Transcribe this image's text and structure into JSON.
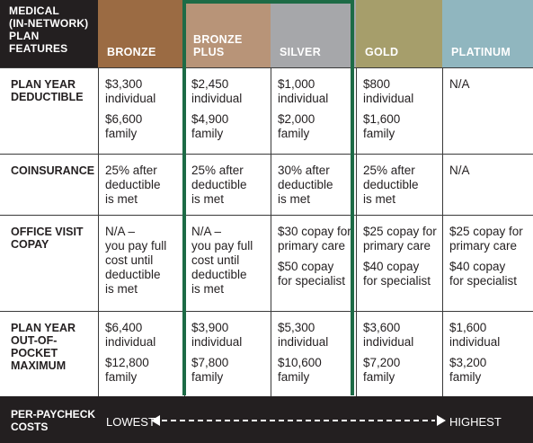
{
  "header": {
    "features_label": "MEDICAL\n(IN-NETWORK)\nPLAN FEATURES",
    "plans": [
      {
        "name": "BRONZE",
        "color": "#9b6b43"
      },
      {
        "name": "BRONZE PLUS",
        "color": "#b89478"
      },
      {
        "name": "SILVER",
        "color": "#a6a7aa"
      },
      {
        "name": "GOLD",
        "color": "#a69e6b"
      },
      {
        "name": "PLATINUM",
        "color": "#90b6bf"
      }
    ]
  },
  "rows": [
    {
      "label": "PLAN YEAR\nDEDUCTIBLE",
      "cells": [
        [
          "$3,300\nindividual",
          "$6,600\nfamily"
        ],
        [
          "$2,450\nindividual",
          "$4,900\nfamily"
        ],
        [
          "$1,000\nindividual",
          "$2,000\nfamily"
        ],
        [
          "$800\nindividual",
          "$1,600\nfamily"
        ],
        [
          "N/A"
        ]
      ]
    },
    {
      "label": "COINSURANCE",
      "cells": [
        [
          "25% after\ndeductible\nis met"
        ],
        [
          "25% after\ndeductible\nis met"
        ],
        [
          "30% after\ndeductible\nis met"
        ],
        [
          "25% after\ndeductible\nis met"
        ],
        [
          "N/A"
        ]
      ]
    },
    {
      "label": "OFFICE VISIT\nCOPAY",
      "cells": [
        [
          "N/A –\nyou pay full\ncost until\ndeductible\nis met"
        ],
        [
          "N/A –\nyou pay full\ncost until\ndeductible\nis met"
        ],
        [
          "$30 copay for\nprimary care",
          "$50 copay\nfor specialist"
        ],
        [
          "$25 copay for\nprimary care",
          "$40 copay\nfor specialist"
        ],
        [
          "$25 copay for\nprimary care",
          "$40 copay\nfor specialist"
        ]
      ]
    },
    {
      "label": "PLAN YEAR\nOUT-OF-POCKET\nMAXIMUM",
      "cells": [
        [
          "$6,400\nindividual",
          "$12,800\nfamily"
        ],
        [
          "$3,900\nindividual",
          "$7,800\nfamily"
        ],
        [
          "$5,300\nindividual",
          "$10,600\nfamily"
        ],
        [
          "$3,600\nindividual",
          "$7,200\nfamily"
        ],
        [
          "$1,600\nindividual",
          "$3,200\nfamily"
        ]
      ]
    }
  ],
  "footer": {
    "label": "PER-PAYCHECK\nCOSTS",
    "low": "LOWEST",
    "high": "HIGHEST"
  },
  "colors": {
    "highlight": "#1d6b46",
    "dark": "#231f20"
  }
}
